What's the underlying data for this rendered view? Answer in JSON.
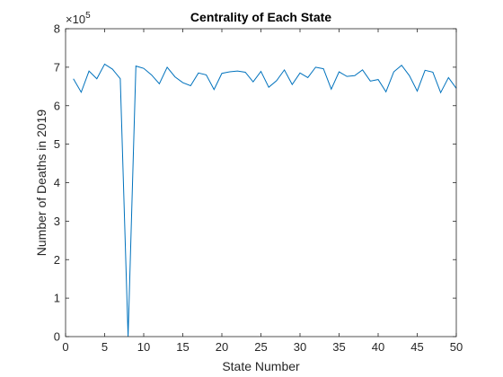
{
  "chart_data": {
    "type": "line",
    "title": "Centrality of Each State",
    "xlabel": "State Number",
    "ylabel": "Number of Deaths in 2019",
    "y_exponent_label": "×10",
    "y_exponent_power": "5",
    "xlim": [
      0,
      50
    ],
    "ylim": [
      0,
      8
    ],
    "xticks": [
      "0",
      "5",
      "10",
      "15",
      "20",
      "25",
      "30",
      "35",
      "40",
      "45",
      "50"
    ],
    "yticks": [
      "0",
      "1",
      "2",
      "3",
      "4",
      "5",
      "6",
      "7",
      "8"
    ],
    "grid": false,
    "line_color": "#0072BD",
    "series": [
      {
        "x": [
          1,
          2,
          3,
          4,
          5,
          6,
          7,
          8,
          9,
          10,
          11,
          12,
          13,
          14,
          15,
          16,
          17,
          18,
          19,
          20,
          21,
          22,
          23,
          24,
          25,
          26,
          27,
          28,
          29,
          30,
          31,
          32,
          33,
          34,
          35,
          36,
          37,
          38,
          39,
          40,
          41,
          42,
          43,
          44,
          45,
          46,
          47,
          48,
          49,
          50
        ],
        "values": [
          6.7,
          6.35,
          6.9,
          6.7,
          7.08,
          6.95,
          6.7,
          0.0,
          7.03,
          6.97,
          6.8,
          6.57,
          7.0,
          6.75,
          6.6,
          6.52,
          6.85,
          6.8,
          6.42,
          6.84,
          6.88,
          6.9,
          6.87,
          6.62,
          6.89,
          6.48,
          6.65,
          6.93,
          6.55,
          6.85,
          6.73,
          7.0,
          6.96,
          6.43,
          6.88,
          6.76,
          6.78,
          6.93,
          6.64,
          6.68,
          6.36,
          6.88,
          7.05,
          6.78,
          6.38,
          6.92,
          6.87,
          6.34,
          6.73,
          6.45
        ]
      }
    ]
  }
}
